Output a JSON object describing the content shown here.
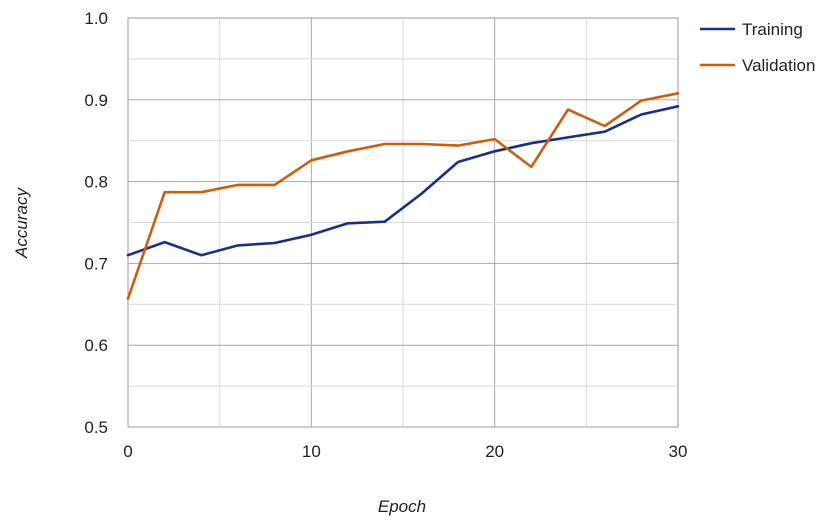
{
  "chart_data": {
    "type": "line",
    "title": "",
    "xlabel": "Epoch",
    "ylabel": "Accuracy",
    "xlim": [
      0,
      30
    ],
    "ylim": [
      0.5,
      1.0
    ],
    "x_ticks": [
      0,
      10,
      20,
      30
    ],
    "x_tick_labels": [
      "0",
      "10",
      "20",
      "30"
    ],
    "y_ticks": [
      0.5,
      0.6,
      0.7,
      0.8,
      0.9,
      1.0
    ],
    "y_tick_labels": [
      "0.5",
      "0.6",
      "0.7",
      "0.8",
      "0.9",
      "1.0"
    ],
    "grid": true,
    "legend_position": "right",
    "x": [
      0,
      2,
      4,
      6,
      8,
      10,
      12,
      14,
      16,
      18,
      20,
      22,
      24,
      26,
      28,
      30
    ],
    "series": [
      {
        "name": "Training",
        "color": "#1a2f8c",
        "values": [
          0.71,
          0.726,
          0.71,
          0.722,
          0.725,
          0.735,
          0.749,
          0.751,
          0.785,
          0.824,
          0.837,
          0.847,
          0.854,
          0.861,
          0.882,
          0.892
        ]
      },
      {
        "name": "Validation",
        "color": "#cc5e0f",
        "values": [
          0.657,
          0.787,
          0.787,
          0.796,
          0.796,
          0.826,
          0.837,
          0.846,
          0.846,
          0.844,
          0.852,
          0.818,
          0.888,
          0.868,
          0.899,
          0.908
        ]
      }
    ]
  }
}
